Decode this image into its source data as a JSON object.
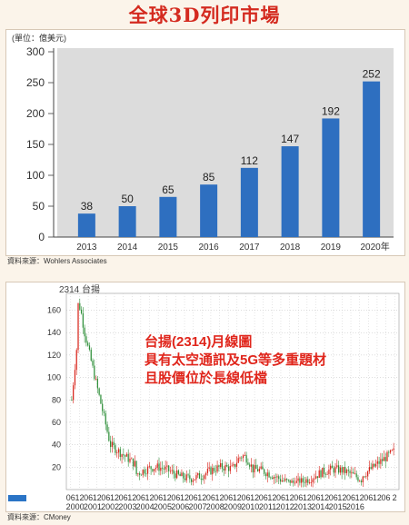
{
  "header": {
    "title": "全球3D列印市場"
  },
  "colors": {
    "title": "#d42a1f",
    "bar": "#2e6fc0",
    "plot_bg": "#dcdcdc",
    "annotation": "#e0261c",
    "candle_up": "#d8261d",
    "candle_down": "#2f8f3a"
  },
  "chart_data": [
    {
      "type": "bar",
      "unit_label": "(單位：億美元)",
      "categories": [
        "2013",
        "2014",
        "2015",
        "2016",
        "2017",
        "2018",
        "2019",
        "2020年"
      ],
      "values": [
        38,
        50,
        65,
        85,
        112,
        147,
        192,
        252
      ],
      "data_labels": [
        "38",
        "50",
        "65",
        "85",
        "112",
        "147",
        "192",
        "252"
      ],
      "yticks": [
        "300",
        "250",
        "200",
        "150",
        "100",
        "50",
        "0"
      ],
      "ylim": [
        0,
        300
      ],
      "grid": false,
      "source": "資料來源：Wohlers Associates"
    },
    {
      "type": "candlestick",
      "ticker_label": "2314  台揚",
      "annotation": [
        "台揚(2314)月線圖",
        "具有太空通訊及5G等多重題材",
        "且股價位於長線低檔"
      ],
      "yticks": [
        "160",
        "140",
        "120",
        "100",
        "80",
        "60",
        "40",
        "20"
      ],
      "ylim": [
        0,
        175
      ],
      "x_tick_labels": [
        "06",
        "12",
        "06",
        "12",
        "06",
        "12",
        "06",
        "12",
        "06",
        "12",
        "06",
        "12",
        "06",
        "12",
        "06",
        "12",
        "06",
        "12",
        "06",
        "12",
        "06",
        "12",
        "06",
        "12",
        "06",
        "12",
        "06",
        "12",
        "06",
        "12",
        "06",
        "12",
        "06",
        "12",
        "06",
        "12",
        "06",
        "2"
      ],
      "x_year_labels": [
        "2000",
        "2001",
        "2002",
        "2003",
        "2004",
        "2005",
        "2006",
        "2007",
        "2008",
        "2009",
        "2010",
        "2011",
        "2012",
        "2013",
        "2014",
        "2015",
        "2016"
      ],
      "grid": true,
      "source": "資料來源：CMoney"
    }
  ]
}
